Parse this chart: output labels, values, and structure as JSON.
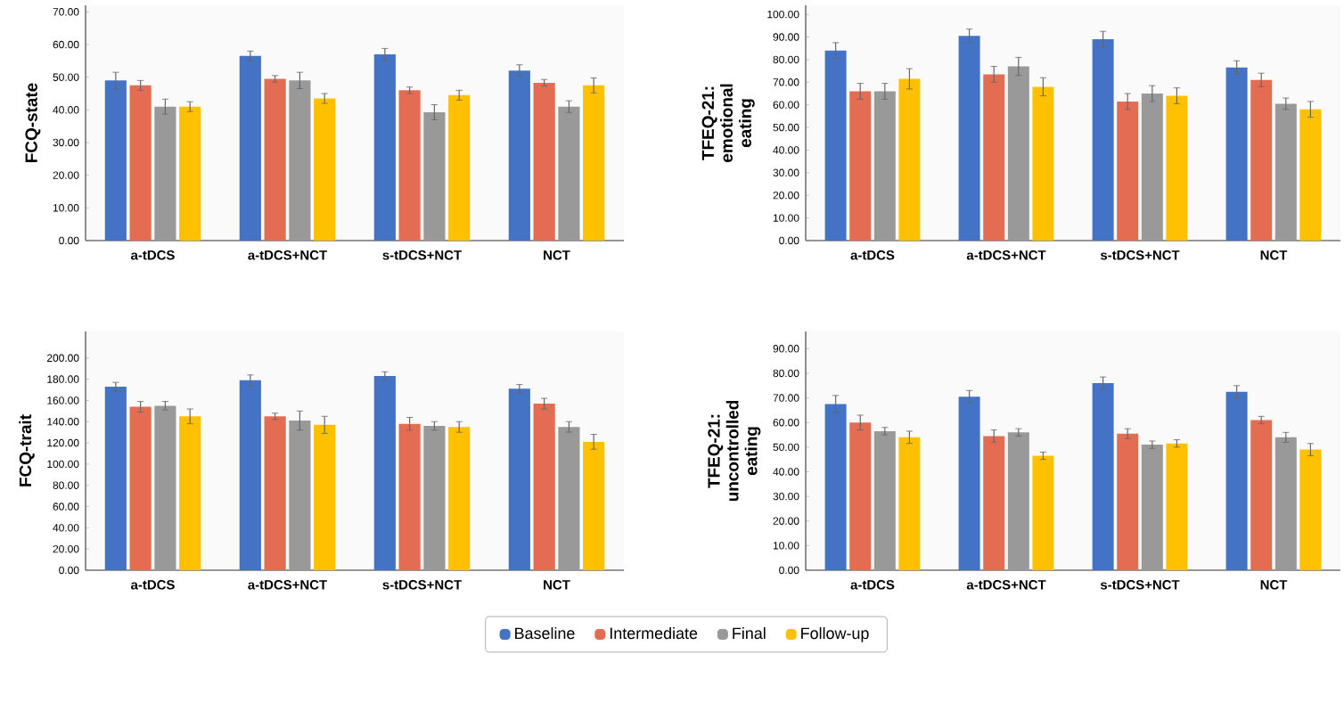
{
  "chart_data": [
    {
      "type": "bar",
      "ylabel": "FCQ-state",
      "categories": [
        "a-tDCS",
        "a-tDCS+NCT",
        "s-tDCS+NCT",
        "NCT"
      ],
      "legend": "bottom",
      "ylim": [
        0,
        72
      ],
      "yticks": [
        {
          "value": 0,
          "label": "0.00"
        },
        {
          "value": 10,
          "label": "10.00"
        },
        {
          "value": 20,
          "label": "20.00"
        },
        {
          "value": 30,
          "label": "30.00"
        },
        {
          "value": 40,
          "label": "40.00"
        },
        {
          "value": 50,
          "label": "50.00"
        },
        {
          "value": 60,
          "label": "60.00"
        },
        {
          "value": 70,
          "label": "70.00"
        }
      ],
      "series": [
        {
          "name": "Baseline",
          "color": "#4472c4",
          "values": [
            49,
            56.5,
            57,
            52
          ],
          "errors": [
            2.5,
            1.5,
            1.8,
            1.8
          ]
        },
        {
          "name": "Intermediate",
          "color": "#e46c52",
          "values": [
            47.5,
            49.5,
            46,
            48.3
          ],
          "errors": [
            1.5,
            1,
            1,
            1
          ]
        },
        {
          "name": "Final",
          "color": "#999999",
          "values": [
            41,
            49,
            39.3,
            41
          ],
          "errors": [
            2.3,
            2.5,
            2.3,
            1.8
          ]
        },
        {
          "name": "Follow-up",
          "color": "#ffc000",
          "values": [
            41,
            43.5,
            44.5,
            47.5
          ],
          "errors": [
            1.5,
            1.5,
            1.5,
            2.3
          ]
        }
      ]
    },
    {
      "type": "bar",
      "ylabel": "TFEQ-21: emotional eating",
      "categories": [
        "a-tDCS",
        "a-tDCS+NCT",
        "s-tDCS+NCT",
        "NCT"
      ],
      "ylim": [
        0,
        104
      ],
      "yticks": [
        {
          "value": 0,
          "label": "0.00"
        },
        {
          "value": 10,
          "label": "10.00"
        },
        {
          "value": 20,
          "label": "20.00"
        },
        {
          "value": 30,
          "label": "30.00"
        },
        {
          "value": 40,
          "label": "40.00"
        },
        {
          "value": 50,
          "label": "50.00"
        },
        {
          "value": 60,
          "label": "60.00"
        },
        {
          "value": 70,
          "label": "70.00"
        },
        {
          "value": 80,
          "label": "80.00"
        },
        {
          "value": 90,
          "label": "90.00"
        },
        {
          "value": 100,
          "label": "100.00"
        }
      ],
      "series": [
        {
          "color": "#4472c4",
          "values": [
            84,
            90.5,
            89,
            76.5
          ],
          "errors": [
            3.5,
            3,
            3.5,
            3
          ]
        },
        {
          "color": "#e46c52",
          "values": [
            66,
            73.5,
            61.5,
            71
          ],
          "errors": [
            3.5,
            3.5,
            3.5,
            3
          ]
        },
        {
          "color": "#999999",
          "values": [
            66,
            77,
            65,
            60.5
          ],
          "errors": [
            3.5,
            4,
            3.5,
            2.5
          ]
        },
        {
          "color": "#ffc000",
          "values": [
            71.5,
            68,
            64,
            58
          ],
          "errors": [
            4.5,
            4,
            3.5,
            3.5
          ]
        }
      ]
    },
    {
      "type": "bar",
      "ylabel": "FCQ-trait",
      "categories": [
        "a-tDCS",
        "a-tDCS+NCT",
        "s-tDCS+NCT",
        "NCT"
      ],
      "ylim": [
        0,
        225
      ],
      "yticks": [
        {
          "value": 0,
          "label": "0.00"
        },
        {
          "value": 20,
          "label": "20.00"
        },
        {
          "value": 40,
          "label": "40.00"
        },
        {
          "value": 60,
          "label": "60.00"
        },
        {
          "value": 80,
          "label": "80.00"
        },
        {
          "value": 100,
          "label": "100.00"
        },
        {
          "value": 120,
          "label": "120.00"
        },
        {
          "value": 140,
          "label": "140.00"
        },
        {
          "value": 160,
          "label": "160.00"
        },
        {
          "value": 180,
          "label": "180.00"
        },
        {
          "value": 200,
          "label": "200.00"
        }
      ],
      "series": [
        {
          "color": "#4472c4",
          "values": [
            173,
            179,
            183,
            171
          ],
          "errors": [
            4,
            5,
            4,
            4
          ]
        },
        {
          "color": "#e46c52",
          "values": [
            154,
            145,
            138,
            157
          ],
          "errors": [
            5,
            3,
            6,
            5
          ]
        },
        {
          "color": "#999999",
          "values": [
            155,
            141,
            136,
            135
          ],
          "errors": [
            4,
            9,
            4,
            5
          ]
        },
        {
          "color": "#ffc000",
          "values": [
            145,
            137,
            135,
            121
          ],
          "errors": [
            7,
            8,
            5,
            7
          ]
        }
      ]
    },
    {
      "type": "bar",
      "ylabel": "TFEQ-21: uncontrolled eating",
      "categories": [
        "a-tDCS",
        "a-tDCS+NCT",
        "s-tDCS+NCT",
        "NCT"
      ],
      "ylim": [
        0,
        97
      ],
      "yticks": [
        {
          "value": 0,
          "label": "0.00"
        },
        {
          "value": 10,
          "label": "10.00"
        },
        {
          "value": 20,
          "label": "20.00"
        },
        {
          "value": 30,
          "label": "30.00"
        },
        {
          "value": 40,
          "label": "40.00"
        },
        {
          "value": 50,
          "label": "50.00"
        },
        {
          "value": 60,
          "label": "60.00"
        },
        {
          "value": 70,
          "label": "70.00"
        },
        {
          "value": 80,
          "label": "80.00"
        },
        {
          "value": 90,
          "label": "90.00"
        }
      ],
      "series": [
        {
          "color": "#4472c4",
          "values": [
            67.5,
            70.5,
            76,
            72.5
          ],
          "errors": [
            3.5,
            2.5,
            2.5,
            2.5
          ]
        },
        {
          "color": "#e46c52",
          "values": [
            60,
            54.5,
            55.5,
            61
          ],
          "errors": [
            3,
            2.5,
            2,
            1.5
          ]
        },
        {
          "color": "#999999",
          "values": [
            56.5,
            56,
            51,
            54
          ],
          "errors": [
            1.5,
            1.5,
            1.5,
            2
          ]
        },
        {
          "color": "#ffc000",
          "values": [
            54,
            46.5,
            51.5,
            49
          ],
          "errors": [
            2.5,
            1.5,
            1.5,
            2.5
          ]
        }
      ]
    }
  ]
}
